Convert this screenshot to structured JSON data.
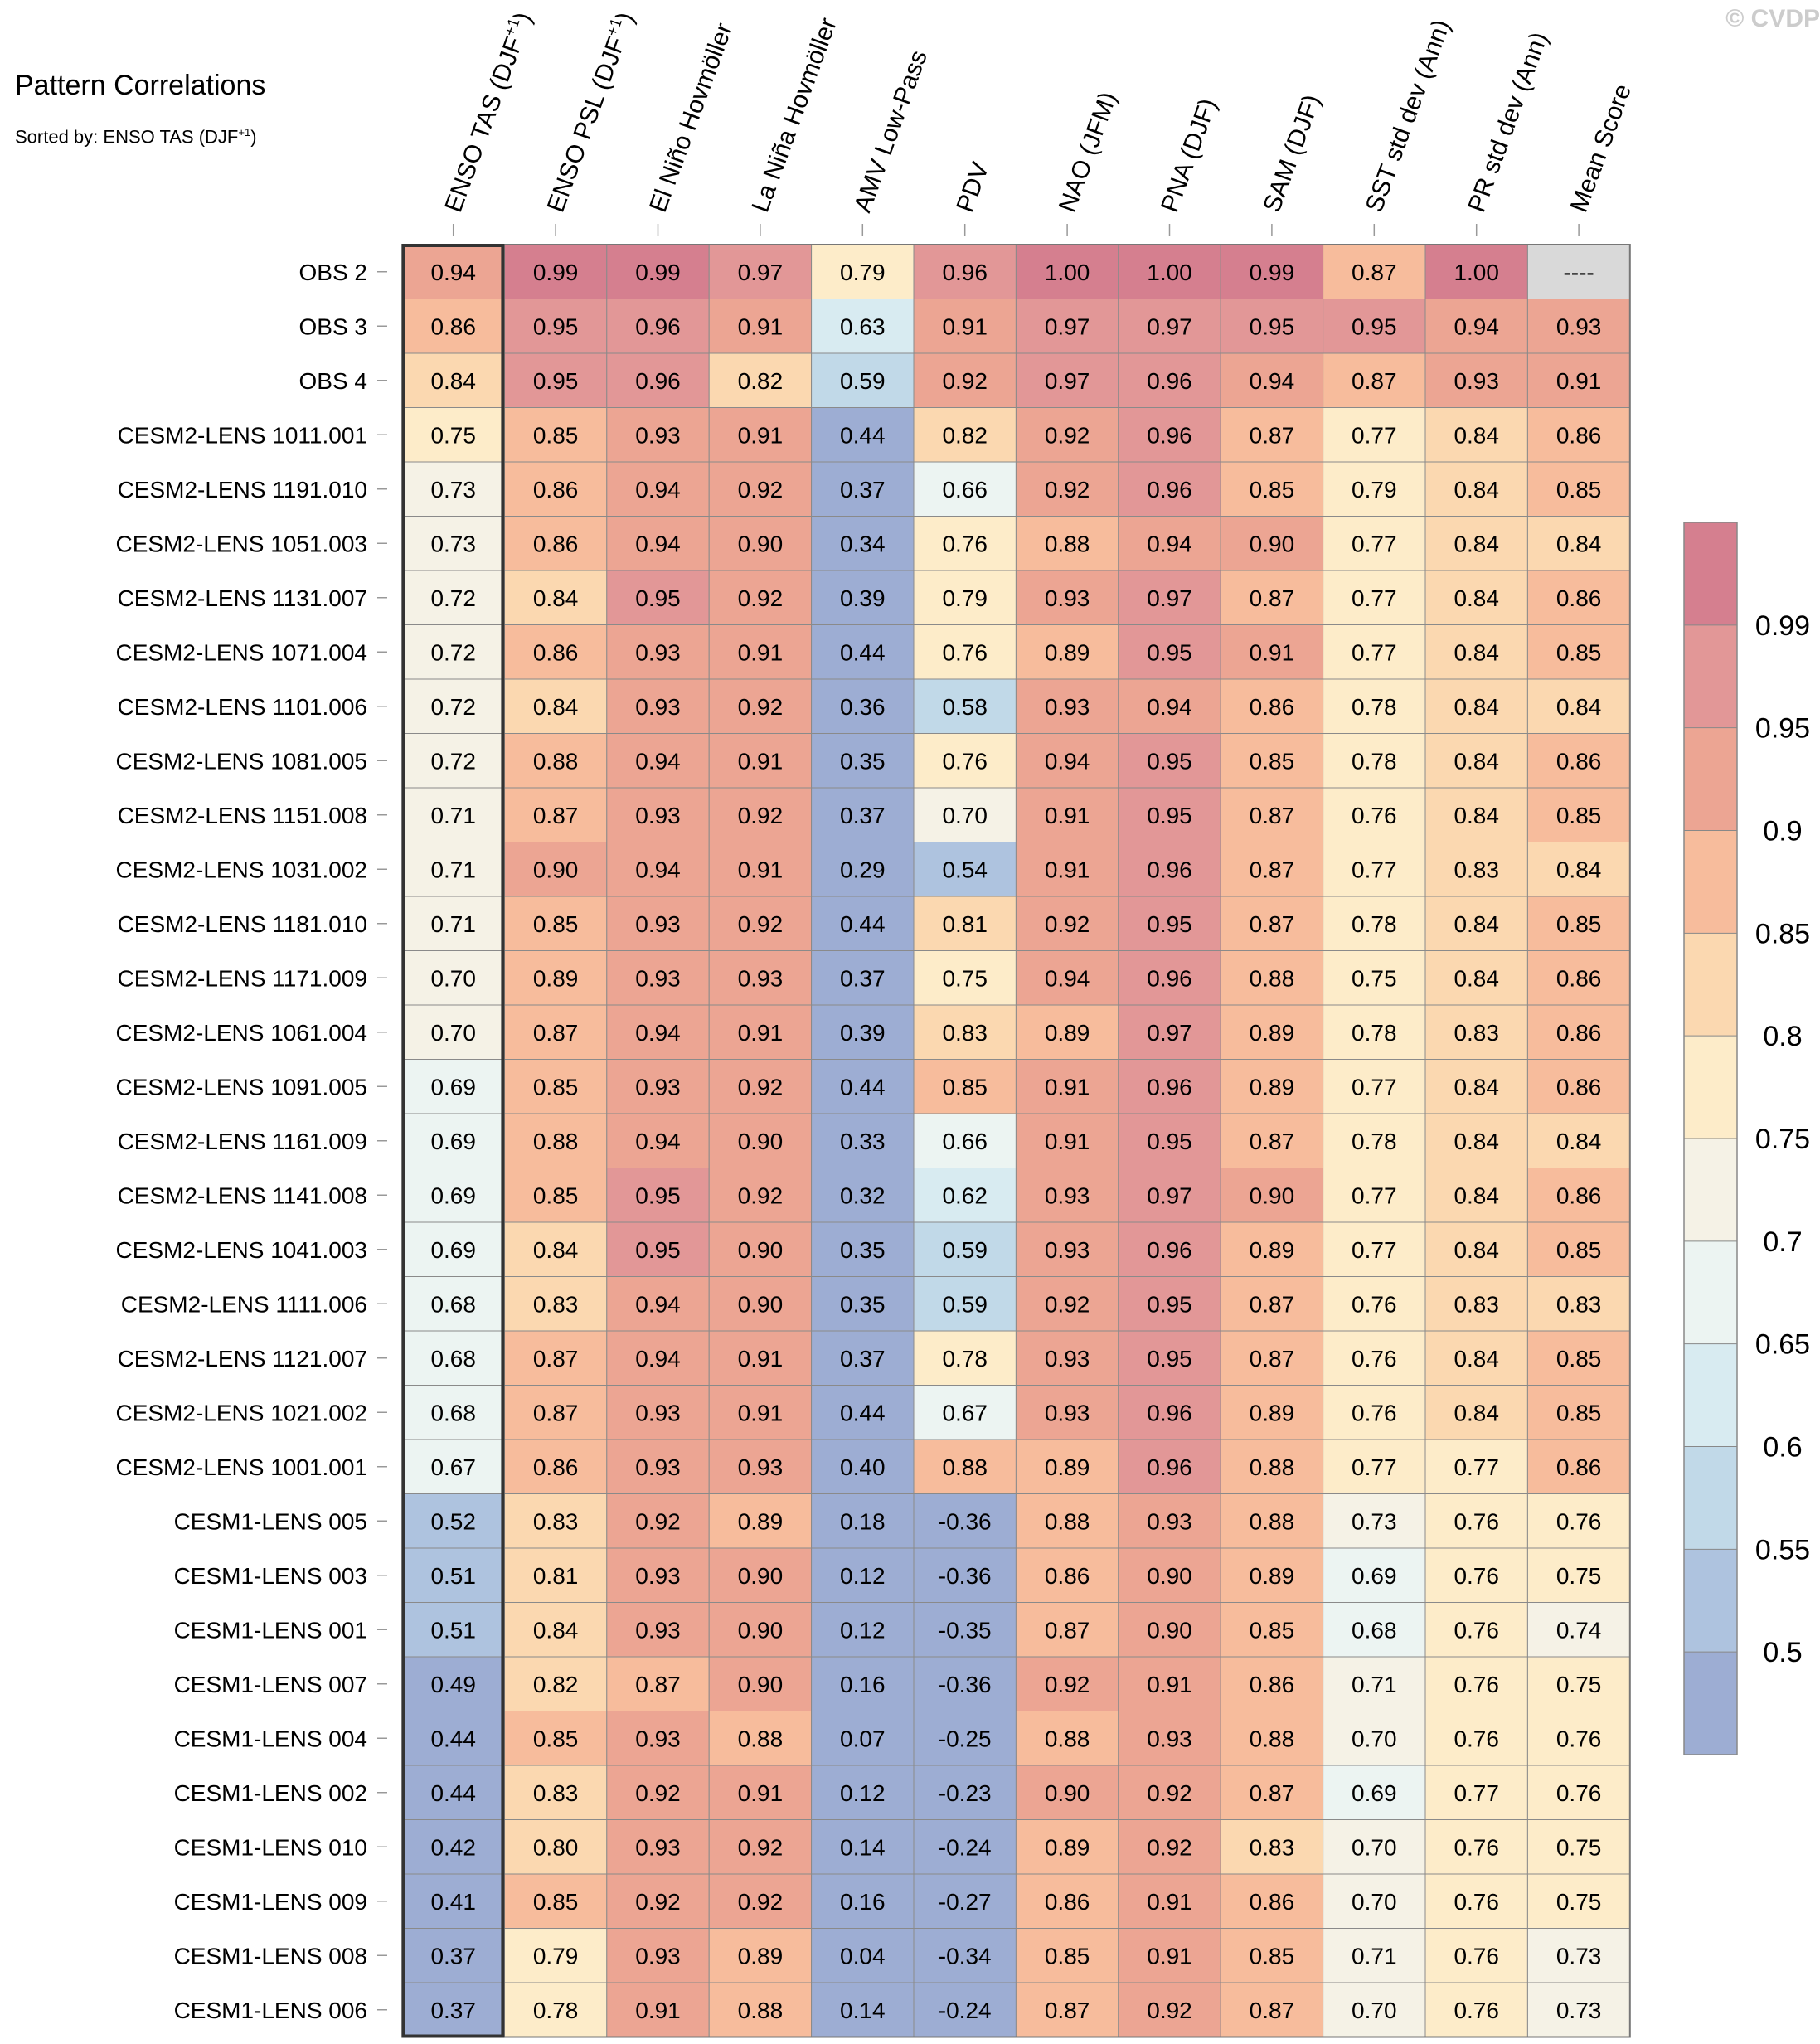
{
  "credit": "© CVDP",
  "chart_data": {
    "type": "heatmap",
    "title": "Pattern Correlations",
    "subtitle": {
      "text": "Sorted by: ENSO TAS (DJF",
      "sup": "+1",
      "suffix": ")"
    },
    "highlighted_column": "ENSO TAS (DJF+1)",
    "columns": [
      {
        "base": "ENSO TAS (DJF",
        "sup": "+1",
        "suffix": ")"
      },
      {
        "base": "ENSO PSL (DJF",
        "sup": "+1",
        "suffix": ")"
      },
      {
        "base": "El Niño Hovmöller"
      },
      {
        "base": "La Niña Hovmöller"
      },
      {
        "base": "AMV Low-Pass"
      },
      {
        "base": "PDV"
      },
      {
        "base": "NAO (JFM)"
      },
      {
        "base": "PNA (DJF)"
      },
      {
        "base": "SAM (DJF)"
      },
      {
        "base": "SST std dev (Ann)"
      },
      {
        "base": "PR std dev (Ann)"
      },
      {
        "base": "Mean Score"
      }
    ],
    "rows": [
      {
        "name": "OBS 2",
        "values": [
          "0.94",
          "0.99",
          "0.99",
          "0.97",
          "0.79",
          "0.96",
          "1.00",
          "1.00",
          "0.99",
          "0.87",
          "1.00",
          "----"
        ]
      },
      {
        "name": "OBS 3",
        "values": [
          "0.86",
          "0.95",
          "0.96",
          "0.91",
          "0.63",
          "0.91",
          "0.97",
          "0.97",
          "0.95",
          "0.95",
          "0.94",
          "0.93"
        ]
      },
      {
        "name": "OBS 4",
        "values": [
          "0.84",
          "0.95",
          "0.96",
          "0.82",
          "0.59",
          "0.92",
          "0.97",
          "0.96",
          "0.94",
          "0.87",
          "0.93",
          "0.91"
        ]
      },
      {
        "name": "CESM2-LENS 1011.001",
        "values": [
          "0.75",
          "0.85",
          "0.93",
          "0.91",
          "0.44",
          "0.82",
          "0.92",
          "0.96",
          "0.87",
          "0.77",
          "0.84",
          "0.86"
        ]
      },
      {
        "name": "CESM2-LENS 1191.010",
        "values": [
          "0.73",
          "0.86",
          "0.94",
          "0.92",
          "0.37",
          "0.66",
          "0.92",
          "0.96",
          "0.85",
          "0.79",
          "0.84",
          "0.85"
        ]
      },
      {
        "name": "CESM2-LENS 1051.003",
        "values": [
          "0.73",
          "0.86",
          "0.94",
          "0.90",
          "0.34",
          "0.76",
          "0.88",
          "0.94",
          "0.90",
          "0.77",
          "0.84",
          "0.84"
        ]
      },
      {
        "name": "CESM2-LENS 1131.007",
        "values": [
          "0.72",
          "0.84",
          "0.95",
          "0.92",
          "0.39",
          "0.79",
          "0.93",
          "0.97",
          "0.87",
          "0.77",
          "0.84",
          "0.86"
        ]
      },
      {
        "name": "CESM2-LENS 1071.004",
        "values": [
          "0.72",
          "0.86",
          "0.93",
          "0.91",
          "0.44",
          "0.76",
          "0.89",
          "0.95",
          "0.91",
          "0.77",
          "0.84",
          "0.85"
        ]
      },
      {
        "name": "CESM2-LENS 1101.006",
        "values": [
          "0.72",
          "0.84",
          "0.93",
          "0.92",
          "0.36",
          "0.58",
          "0.93",
          "0.94",
          "0.86",
          "0.78",
          "0.84",
          "0.84"
        ]
      },
      {
        "name": "CESM2-LENS 1081.005",
        "values": [
          "0.72",
          "0.88",
          "0.94",
          "0.91",
          "0.35",
          "0.76",
          "0.94",
          "0.95",
          "0.85",
          "0.78",
          "0.84",
          "0.86"
        ]
      },
      {
        "name": "CESM2-LENS 1151.008",
        "values": [
          "0.71",
          "0.87",
          "0.93",
          "0.92",
          "0.37",
          "0.70",
          "0.91",
          "0.95",
          "0.87",
          "0.76",
          "0.84",
          "0.85"
        ]
      },
      {
        "name": "CESM2-LENS 1031.002",
        "values": [
          "0.71",
          "0.90",
          "0.94",
          "0.91",
          "0.29",
          "0.54",
          "0.91",
          "0.96",
          "0.87",
          "0.77",
          "0.83",
          "0.84"
        ]
      },
      {
        "name": "CESM2-LENS 1181.010",
        "values": [
          "0.71",
          "0.85",
          "0.93",
          "0.92",
          "0.44",
          "0.81",
          "0.92",
          "0.95",
          "0.87",
          "0.78",
          "0.84",
          "0.85"
        ]
      },
      {
        "name": "CESM2-LENS 1171.009",
        "values": [
          "0.70",
          "0.89",
          "0.93",
          "0.93",
          "0.37",
          "0.75",
          "0.94",
          "0.96",
          "0.88",
          "0.75",
          "0.84",
          "0.86"
        ]
      },
      {
        "name": "CESM2-LENS 1061.004",
        "values": [
          "0.70",
          "0.87",
          "0.94",
          "0.91",
          "0.39",
          "0.83",
          "0.89",
          "0.97",
          "0.89",
          "0.78",
          "0.83",
          "0.86"
        ]
      },
      {
        "name": "CESM2-LENS 1091.005",
        "values": [
          "0.69",
          "0.85",
          "0.93",
          "0.92",
          "0.44",
          "0.85",
          "0.91",
          "0.96",
          "0.89",
          "0.77",
          "0.84",
          "0.86"
        ]
      },
      {
        "name": "CESM2-LENS 1161.009",
        "values": [
          "0.69",
          "0.88",
          "0.94",
          "0.90",
          "0.33",
          "0.66",
          "0.91",
          "0.95",
          "0.87",
          "0.78",
          "0.84",
          "0.84"
        ]
      },
      {
        "name": "CESM2-LENS 1141.008",
        "values": [
          "0.69",
          "0.85",
          "0.95",
          "0.92",
          "0.32",
          "0.62",
          "0.93",
          "0.97",
          "0.90",
          "0.77",
          "0.84",
          "0.86"
        ]
      },
      {
        "name": "CESM2-LENS 1041.003",
        "values": [
          "0.69",
          "0.84",
          "0.95",
          "0.90",
          "0.35",
          "0.59",
          "0.93",
          "0.96",
          "0.89",
          "0.77",
          "0.84",
          "0.85"
        ]
      },
      {
        "name": "CESM2-LENS 1111.006",
        "values": [
          "0.68",
          "0.83",
          "0.94",
          "0.90",
          "0.35",
          "0.59",
          "0.92",
          "0.95",
          "0.87",
          "0.76",
          "0.83",
          "0.83"
        ]
      },
      {
        "name": "CESM2-LENS 1121.007",
        "values": [
          "0.68",
          "0.87",
          "0.94",
          "0.91",
          "0.37",
          "0.78",
          "0.93",
          "0.95",
          "0.87",
          "0.76",
          "0.84",
          "0.85"
        ]
      },
      {
        "name": "CESM2-LENS 1021.002",
        "values": [
          "0.68",
          "0.87",
          "0.93",
          "0.91",
          "0.44",
          "0.67",
          "0.93",
          "0.96",
          "0.89",
          "0.76",
          "0.84",
          "0.85"
        ]
      },
      {
        "name": "CESM2-LENS 1001.001",
        "values": [
          "0.67",
          "0.86",
          "0.93",
          "0.93",
          "0.40",
          "0.88",
          "0.89",
          "0.96",
          "0.88",
          "0.77",
          "0.77",
          "0.86"
        ]
      },
      {
        "name": "CESM1-LENS 005",
        "values": [
          "0.52",
          "0.83",
          "0.92",
          "0.89",
          "0.18",
          "-0.36",
          "0.88",
          "0.93",
          "0.88",
          "0.73",
          "0.76",
          "0.76"
        ]
      },
      {
        "name": "CESM1-LENS 003",
        "values": [
          "0.51",
          "0.81",
          "0.93",
          "0.90",
          "0.12",
          "-0.36",
          "0.86",
          "0.90",
          "0.89",
          "0.69",
          "0.76",
          "0.75"
        ]
      },
      {
        "name": "CESM1-LENS 001",
        "values": [
          "0.51",
          "0.84",
          "0.93",
          "0.90",
          "0.12",
          "-0.35",
          "0.87",
          "0.90",
          "0.85",
          "0.68",
          "0.76",
          "0.74"
        ]
      },
      {
        "name": "CESM1-LENS 007",
        "values": [
          "0.49",
          "0.82",
          "0.87",
          "0.90",
          "0.16",
          "-0.36",
          "0.92",
          "0.91",
          "0.86",
          "0.71",
          "0.76",
          "0.75"
        ]
      },
      {
        "name": "CESM1-LENS 004",
        "values": [
          "0.44",
          "0.85",
          "0.93",
          "0.88",
          "0.07",
          "-0.25",
          "0.88",
          "0.93",
          "0.88",
          "0.70",
          "0.76",
          "0.76"
        ]
      },
      {
        "name": "CESM1-LENS 002",
        "values": [
          "0.44",
          "0.83",
          "0.92",
          "0.91",
          "0.12",
          "-0.23",
          "0.90",
          "0.92",
          "0.87",
          "0.69",
          "0.77",
          "0.76"
        ]
      },
      {
        "name": "CESM1-LENS 010",
        "values": [
          "0.42",
          "0.80",
          "0.93",
          "0.92",
          "0.14",
          "-0.24",
          "0.89",
          "0.92",
          "0.83",
          "0.70",
          "0.76",
          "0.75"
        ]
      },
      {
        "name": "CESM1-LENS 009",
        "values": [
          "0.41",
          "0.85",
          "0.92",
          "0.92",
          "0.16",
          "-0.27",
          "0.86",
          "0.91",
          "0.86",
          "0.70",
          "0.76",
          "0.75"
        ]
      },
      {
        "name": "CESM1-LENS 008",
        "values": [
          "0.37",
          "0.79",
          "0.93",
          "0.89",
          "0.04",
          "-0.34",
          "0.85",
          "0.91",
          "0.85",
          "0.71",
          "0.76",
          "0.73"
        ]
      },
      {
        "name": "CESM1-LENS 006",
        "values": [
          "0.37",
          "0.78",
          "0.91",
          "0.88",
          "0.14",
          "-0.24",
          "0.87",
          "0.92",
          "0.87",
          "0.70",
          "0.76",
          "0.73"
        ]
      }
    ],
    "missing_color": "#d9d9d9",
    "colorbar": {
      "tick_labels": [
        "0.5",
        "0.55",
        "0.6",
        "0.65",
        "0.7",
        "0.75",
        "0.8",
        "0.85",
        "0.9",
        "0.95",
        "0.99"
      ],
      "colors": [
        "#9dadd3",
        "#aec3df",
        "#c1d9e8",
        "#d8ebf1",
        "#ecf4f2",
        "#f5f2e6",
        "#fdecc9",
        "#fbd8b0",
        "#f7bc9c",
        "#eca593",
        "#e29797",
        "#d57f8f"
      ]
    }
  }
}
